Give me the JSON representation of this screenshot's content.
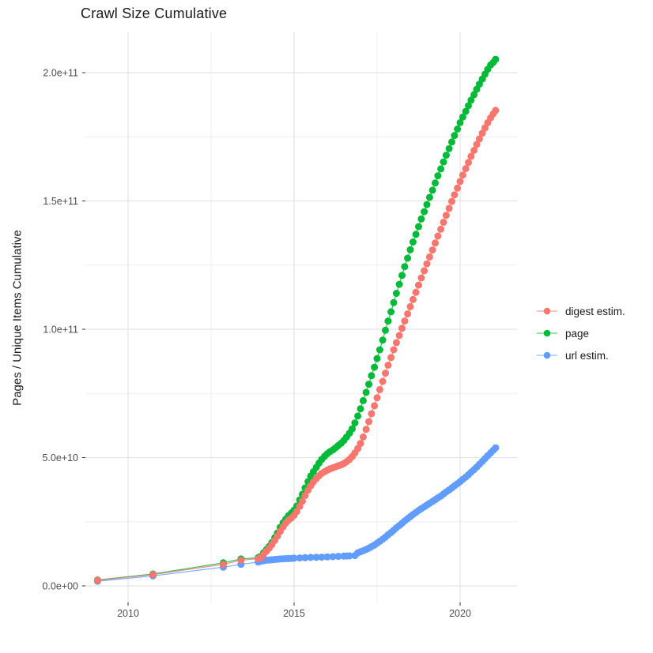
{
  "title": "Crawl Size Cumulative",
  "chart_data": {
    "type": "scatter",
    "title": "Crawl Size Cumulative",
    "xlabel": "",
    "ylabel": "Pages / Unique Items Cumulative",
    "value_unit": "1e9",
    "x_axis": {
      "major_breaks": [
        2010,
        2015,
        2020
      ],
      "minor_breaks": [
        2012.5,
        2017.5
      ],
      "labels": [
        "2010",
        "2015",
        "2020"
      ],
      "range": [
        2008.7,
        2021.8
      ]
    },
    "y_axis": {
      "major_breaks_e9": [
        0,
        50,
        100,
        150,
        200
      ],
      "minor_breaks_e9": [
        25,
        75,
        125,
        175
      ],
      "labels": [
        "0.0e+00",
        "5.0e+10",
        "1.0e+11",
        "1.5e+11",
        "2.0e+11"
      ],
      "range_e9": [
        -7,
        216
      ]
    },
    "grid": true,
    "legend_position": "right",
    "series": [
      {
        "name": "digest estim.",
        "color": "#F8766D",
        "points": [
          [
            2009.08,
            2.2
          ],
          [
            2010.75,
            4.4
          ],
          [
            2012.87,
            8.4
          ],
          [
            2013.4,
            10.0
          ],
          [
            2013.92,
            10.6
          ],
          [
            2014.0,
            11.0
          ],
          [
            2014.08,
            12.3
          ],
          [
            2014.17,
            13.5
          ],
          [
            2014.25,
            14.7
          ],
          [
            2014.33,
            16.1
          ],
          [
            2014.42,
            17.7
          ],
          [
            2014.5,
            19.4
          ],
          [
            2014.58,
            21.2
          ],
          [
            2014.67,
            23.0
          ],
          [
            2014.75,
            24.5
          ],
          [
            2014.83,
            25.6
          ],
          [
            2014.92,
            26.5
          ],
          [
            2015.0,
            27.5
          ],
          [
            2015.08,
            29.0
          ],
          [
            2015.17,
            31.0
          ],
          [
            2015.25,
            33.0
          ],
          [
            2015.33,
            35.2
          ],
          [
            2015.42,
            37.3
          ],
          [
            2015.5,
            39.0
          ],
          [
            2015.58,
            40.5
          ],
          [
            2015.67,
            41.8
          ],
          [
            2015.75,
            42.9
          ],
          [
            2015.83,
            43.8
          ],
          [
            2015.92,
            44.5
          ],
          [
            2016.0,
            45.1
          ],
          [
            2016.08,
            45.6
          ],
          [
            2016.17,
            46.0
          ],
          [
            2016.25,
            46.4
          ],
          [
            2016.33,
            46.8
          ],
          [
            2016.42,
            47.2
          ],
          [
            2016.5,
            47.7
          ],
          [
            2016.58,
            48.4
          ],
          [
            2016.67,
            49.3
          ],
          [
            2016.75,
            50.4
          ],
          [
            2016.83,
            51.8
          ],
          [
            2016.92,
            53.5
          ],
          [
            2017.0,
            55.5
          ],
          [
            2017.08,
            58.0
          ],
          [
            2017.17,
            61.0
          ],
          [
            2017.25,
            64.0
          ],
          [
            2017.33,
            67.1
          ],
          [
            2017.42,
            70.2
          ],
          [
            2017.5,
            73.3
          ],
          [
            2017.58,
            76.5
          ],
          [
            2017.67,
            79.7
          ],
          [
            2017.75,
            82.9
          ],
          [
            2017.83,
            86.0
          ],
          [
            2017.92,
            89.0
          ],
          [
            2018.0,
            92.0
          ],
          [
            2018.08,
            94.8
          ],
          [
            2018.17,
            97.6
          ],
          [
            2018.25,
            100.4
          ],
          [
            2018.33,
            103.2
          ],
          [
            2018.42,
            106.0
          ],
          [
            2018.5,
            108.8
          ],
          [
            2018.58,
            111.6
          ],
          [
            2018.67,
            114.4
          ],
          [
            2018.75,
            117.2
          ],
          [
            2018.83,
            120.0
          ],
          [
            2018.92,
            122.8
          ],
          [
            2019.0,
            125.5
          ],
          [
            2019.08,
            128.2
          ],
          [
            2019.17,
            130.9
          ],
          [
            2019.25,
            133.6
          ],
          [
            2019.33,
            136.3
          ],
          [
            2019.42,
            139.0
          ],
          [
            2019.5,
            141.7
          ],
          [
            2019.58,
            144.4
          ],
          [
            2019.67,
            147.1
          ],
          [
            2019.75,
            149.8
          ],
          [
            2019.83,
            152.4
          ],
          [
            2019.92,
            155.0
          ],
          [
            2020.0,
            157.6
          ],
          [
            2020.08,
            160.1
          ],
          [
            2020.17,
            162.6
          ],
          [
            2020.25,
            165.0
          ],
          [
            2020.33,
            167.4
          ],
          [
            2020.42,
            169.7
          ],
          [
            2020.5,
            172.0
          ],
          [
            2020.58,
            174.2
          ],
          [
            2020.67,
            176.4
          ],
          [
            2020.75,
            178.5
          ],
          [
            2020.83,
            180.5
          ],
          [
            2020.92,
            182.4
          ],
          [
            2021.0,
            184.0
          ],
          [
            2021.07,
            185.3
          ]
        ]
      },
      {
        "name": "page",
        "color": "#00BA38",
        "points": [
          [
            2009.08,
            2.3
          ],
          [
            2010.75,
            4.6
          ],
          [
            2012.87,
            9.0
          ],
          [
            2013.4,
            10.5
          ],
          [
            2013.92,
            11.0
          ],
          [
            2014.0,
            11.5
          ],
          [
            2014.08,
            12.9
          ],
          [
            2014.17,
            14.2
          ],
          [
            2014.25,
            15.4
          ],
          [
            2014.33,
            16.9
          ],
          [
            2014.42,
            18.8
          ],
          [
            2014.5,
            20.6
          ],
          [
            2014.58,
            22.8
          ],
          [
            2014.67,
            24.6
          ],
          [
            2014.75,
            26.0
          ],
          [
            2014.83,
            27.4
          ],
          [
            2014.92,
            28.4
          ],
          [
            2015.0,
            29.5
          ],
          [
            2015.08,
            31.1
          ],
          [
            2015.17,
            33.5
          ],
          [
            2015.25,
            35.7
          ],
          [
            2015.33,
            38.2
          ],
          [
            2015.42,
            40.6
          ],
          [
            2015.5,
            42.8
          ],
          [
            2015.58,
            44.5
          ],
          [
            2015.67,
            46.2
          ],
          [
            2015.75,
            47.8
          ],
          [
            2015.83,
            49.3
          ],
          [
            2015.92,
            50.5
          ],
          [
            2016.0,
            51.5
          ],
          [
            2016.08,
            52.3
          ],
          [
            2016.17,
            53.0
          ],
          [
            2016.25,
            53.8
          ],
          [
            2016.33,
            54.7
          ],
          [
            2016.42,
            55.6
          ],
          [
            2016.5,
            56.7
          ],
          [
            2016.58,
            58.0
          ],
          [
            2016.67,
            59.5
          ],
          [
            2016.75,
            61.2
          ],
          [
            2016.83,
            63.5
          ],
          [
            2016.92,
            66.2
          ],
          [
            2017.0,
            69.0
          ],
          [
            2017.08,
            72.2
          ],
          [
            2017.17,
            75.4
          ],
          [
            2017.25,
            78.6
          ],
          [
            2017.33,
            81.9
          ],
          [
            2017.42,
            85.2
          ],
          [
            2017.5,
            88.6
          ],
          [
            2017.58,
            92.0
          ],
          [
            2017.67,
            95.8
          ],
          [
            2017.75,
            99.6
          ],
          [
            2017.83,
            103.2
          ],
          [
            2017.92,
            106.8
          ],
          [
            2018.0,
            110.4
          ],
          [
            2018.08,
            114.0
          ],
          [
            2018.17,
            117.5
          ],
          [
            2018.25,
            121.0
          ],
          [
            2018.33,
            124.4
          ],
          [
            2018.42,
            127.7
          ],
          [
            2018.5,
            131.0
          ],
          [
            2018.58,
            134.0
          ],
          [
            2018.67,
            137.0
          ],
          [
            2018.75,
            140.0
          ],
          [
            2018.83,
            143.0
          ],
          [
            2018.92,
            145.8
          ],
          [
            2019.0,
            148.6
          ],
          [
            2019.08,
            151.4
          ],
          [
            2019.17,
            154.2
          ],
          [
            2019.25,
            157.0
          ],
          [
            2019.33,
            159.8
          ],
          [
            2019.42,
            162.5
          ],
          [
            2019.5,
            165.2
          ],
          [
            2019.58,
            167.8
          ],
          [
            2019.67,
            170.4
          ],
          [
            2019.75,
            173.0
          ],
          [
            2019.83,
            175.5
          ],
          [
            2019.92,
            178.0
          ],
          [
            2020.0,
            180.5
          ],
          [
            2020.08,
            182.7
          ],
          [
            2020.17,
            184.9
          ],
          [
            2020.25,
            187.1
          ],
          [
            2020.33,
            189.3
          ],
          [
            2020.42,
            191.4
          ],
          [
            2020.5,
            193.5
          ],
          [
            2020.58,
            195.5
          ],
          [
            2020.67,
            197.5
          ],
          [
            2020.75,
            199.4
          ],
          [
            2020.83,
            201.3
          ],
          [
            2020.92,
            203.0
          ],
          [
            2021.0,
            204.0
          ],
          [
            2021.07,
            205.2
          ]
        ]
      },
      {
        "name": "url estim.",
        "color": "#619CFF",
        "points": [
          [
            2009.08,
            1.8
          ],
          [
            2010.75,
            3.9
          ],
          [
            2012.87,
            7.3
          ],
          [
            2013.4,
            8.4
          ],
          [
            2013.92,
            9.3
          ],
          [
            2014.0,
            9.6
          ],
          [
            2014.08,
            9.8
          ],
          [
            2014.17,
            10.0
          ],
          [
            2014.25,
            10.1
          ],
          [
            2014.33,
            10.2
          ],
          [
            2014.42,
            10.3
          ],
          [
            2014.5,
            10.4
          ],
          [
            2014.58,
            10.5
          ],
          [
            2014.67,
            10.55
          ],
          [
            2014.75,
            10.6
          ],
          [
            2014.83,
            10.65
          ],
          [
            2014.92,
            10.7
          ],
          [
            2015.0,
            10.8
          ],
          [
            2015.17,
            10.9
          ],
          [
            2015.33,
            11.0
          ],
          [
            2015.5,
            11.1
          ],
          [
            2015.67,
            11.15
          ],
          [
            2015.83,
            11.2
          ],
          [
            2016.0,
            11.3
          ],
          [
            2016.17,
            11.4
          ],
          [
            2016.33,
            11.5
          ],
          [
            2016.5,
            11.6
          ],
          [
            2016.58,
            11.65
          ],
          [
            2016.67,
            11.7
          ],
          [
            2016.83,
            11.8
          ],
          [
            2016.92,
            12.9
          ],
          [
            2017.0,
            13.3
          ],
          [
            2017.08,
            13.7
          ],
          [
            2017.17,
            14.2
          ],
          [
            2017.25,
            14.7
          ],
          [
            2017.33,
            15.3
          ],
          [
            2017.42,
            15.9
          ],
          [
            2017.5,
            16.6
          ],
          [
            2017.58,
            17.4
          ],
          [
            2017.67,
            18.2
          ],
          [
            2017.75,
            19.0
          ],
          [
            2017.83,
            19.9
          ],
          [
            2017.92,
            20.8
          ],
          [
            2018.0,
            21.7
          ],
          [
            2018.08,
            22.6
          ],
          [
            2018.17,
            23.5
          ],
          [
            2018.25,
            24.4
          ],
          [
            2018.33,
            25.3
          ],
          [
            2018.42,
            26.2
          ],
          [
            2018.5,
            27.0
          ],
          [
            2018.58,
            27.8
          ],
          [
            2018.67,
            28.6
          ],
          [
            2018.75,
            29.4
          ],
          [
            2018.83,
            30.1
          ],
          [
            2018.92,
            30.8
          ],
          [
            2019.0,
            31.5
          ],
          [
            2019.08,
            32.2
          ],
          [
            2019.17,
            32.9
          ],
          [
            2019.25,
            33.6
          ],
          [
            2019.33,
            34.3
          ],
          [
            2019.42,
            35.0
          ],
          [
            2019.5,
            35.8
          ],
          [
            2019.58,
            36.6
          ],
          [
            2019.67,
            37.4
          ],
          [
            2019.75,
            38.2
          ],
          [
            2019.83,
            39.0
          ],
          [
            2019.92,
            39.8
          ],
          [
            2020.0,
            40.6
          ],
          [
            2020.08,
            41.5
          ],
          [
            2020.17,
            42.4
          ],
          [
            2020.25,
            43.3
          ],
          [
            2020.33,
            44.3
          ],
          [
            2020.42,
            45.3
          ],
          [
            2020.5,
            46.3
          ],
          [
            2020.58,
            47.4
          ],
          [
            2020.67,
            48.5
          ],
          [
            2020.75,
            49.6
          ],
          [
            2020.83,
            50.7
          ],
          [
            2020.92,
            51.8
          ],
          [
            2021.0,
            52.9
          ],
          [
            2021.07,
            53.8
          ]
        ]
      }
    ],
    "style": {
      "grid_major_color": "#e3e3e3",
      "grid_minor_color": "#efefef",
      "tick_color": "#333333",
      "tick_label_color": "#4d4d4d",
      "text_color": "#1a1a1a",
      "background": "#ffffff"
    }
  }
}
